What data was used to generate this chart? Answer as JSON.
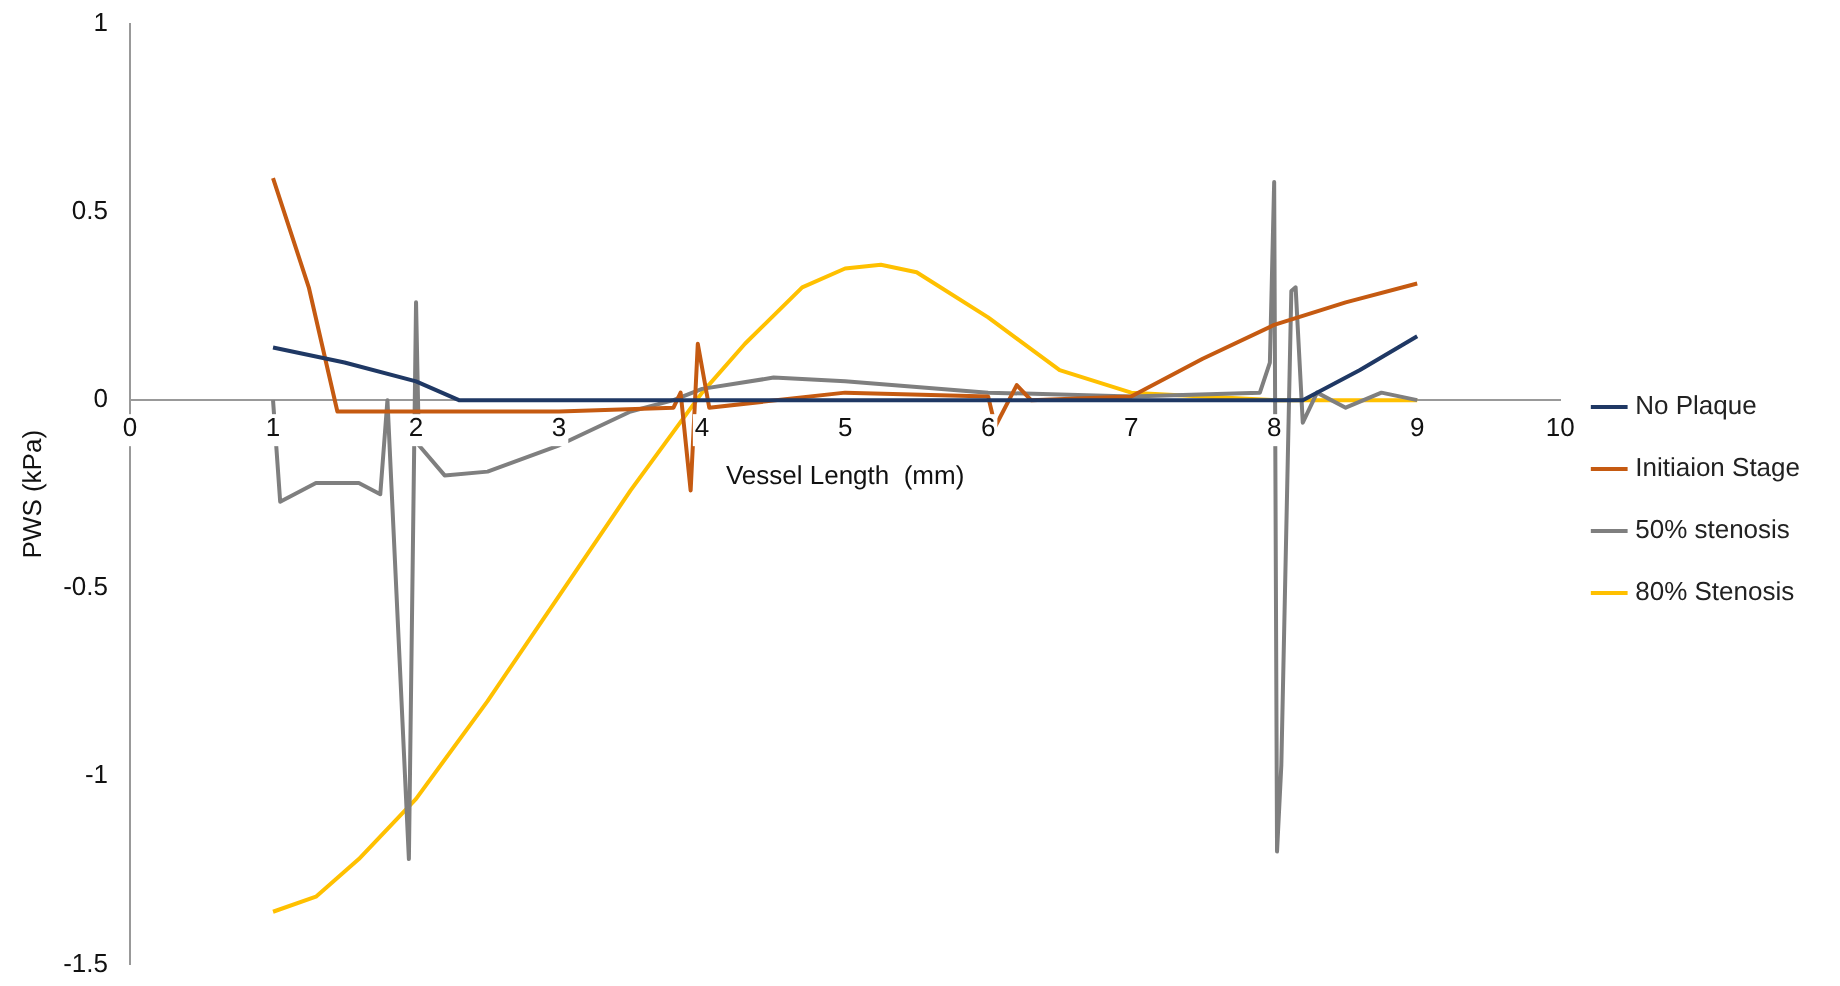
{
  "chart_data": {
    "type": "line",
    "xlabel": "Vessel Length  (mm)",
    "ylabel": "PWS (kPa)",
    "xlim": [
      0,
      10
    ],
    "xticks": [
      0,
      1,
      2,
      3,
      4,
      5,
      6,
      7,
      8,
      9,
      10
    ],
    "ylim": [
      -1.5,
      1
    ],
    "yticks": [
      -1.5,
      -1,
      -0.5,
      0,
      0.5,
      1
    ],
    "grid": false,
    "legend": "right",
    "marker": "none",
    "line_style": "solid",
    "series": [
      {
        "name": "No Plaque",
        "color": "#1f3864",
        "x": [
          1,
          1.5,
          2,
          2.3,
          8.2,
          8.6,
          9
        ],
        "values": [
          0.14,
          0.1,
          0.05,
          0,
          0,
          0.08,
          0.17
        ]
      },
      {
        "name": "Initiaion Stage",
        "color": "#c55a11",
        "x": [
          1,
          1.25,
          1.45,
          2,
          3,
          3.8,
          3.85,
          3.92,
          3.97,
          4.05,
          5,
          6,
          6.05,
          6.2,
          6.3,
          7,
          7.5,
          8,
          8.5,
          9
        ],
        "values": [
          0.59,
          0.3,
          -0.03,
          -0.03,
          -0.03,
          -0.02,
          0.02,
          -0.24,
          0.15,
          -0.02,
          0.02,
          0.01,
          -0.07,
          0.04,
          0,
          0.01,
          0.11,
          0.2,
          0.26,
          0.31
        ]
      },
      {
        "name": "50% stenosis",
        "color": "#7f7f7f",
        "x": [
          1,
          1.05,
          1.1,
          1.3,
          1.6,
          1.75,
          1.8,
          1.95,
          2,
          2.02,
          2.2,
          2.5,
          3,
          3.5,
          3.8,
          4,
          4.5,
          5,
          6,
          7,
          7.9,
          7.97,
          8,
          8.02,
          8.05,
          8.12,
          8.15,
          8.2,
          8.3,
          8.5,
          8.75,
          9
        ],
        "values": [
          0,
          -0.27,
          -0.26,
          -0.22,
          -0.22,
          -0.25,
          0,
          -1.22,
          0.26,
          -0.12,
          -0.2,
          -0.19,
          -0.12,
          -0.03,
          0,
          0.03,
          0.06,
          0.05,
          0.02,
          0.01,
          0.02,
          0.1,
          0.58,
          -1.2,
          -0.97,
          0.29,
          0.3,
          -0.06,
          0.02,
          -0.02,
          0.02,
          0
        ]
      },
      {
        "name": "80% Stenosis",
        "color": "#ffc000",
        "x": [
          1,
          1.3,
          1.6,
          2,
          2.5,
          3,
          3.5,
          4,
          4.3,
          4.7,
          5,
          5.25,
          5.5,
          6,
          6.5,
          7,
          7.5,
          8,
          9
        ],
        "values": [
          -1.36,
          -1.32,
          -1.22,
          -1.06,
          -0.8,
          -0.52,
          -0.24,
          0.02,
          0.15,
          0.3,
          0.35,
          0.36,
          0.34,
          0.22,
          0.08,
          0.02,
          0.01,
          0,
          0
        ]
      }
    ]
  }
}
